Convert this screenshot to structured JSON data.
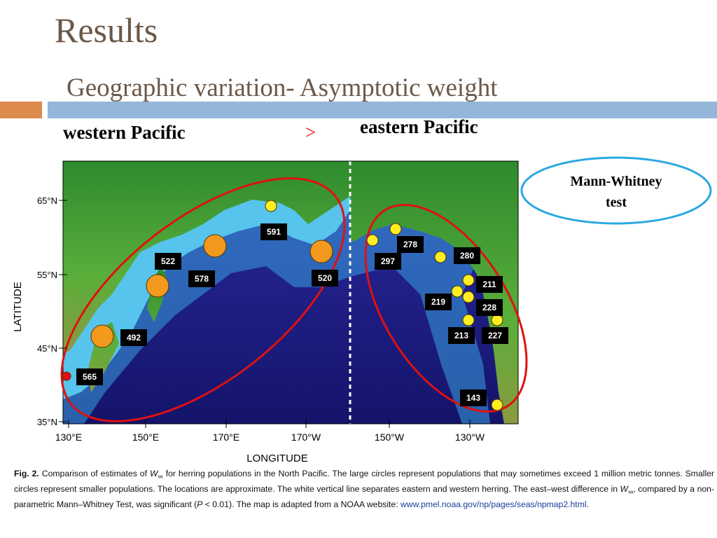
{
  "header": {
    "title": "Results",
    "subtitle": "Geographic variation- Asymptotic weight"
  },
  "comparison": {
    "left": "western Pacific",
    "operator": ">",
    "right": "eastern Pacific"
  },
  "callout": {
    "line1": "Mann-Whitney",
    "line2": "test"
  },
  "figure": {
    "y_axis_label": "LATITUDE",
    "x_axis_label": "LONGITUDE",
    "y_ticks": [
      "65°N",
      "55°N",
      "45°N",
      "35°N"
    ],
    "x_ticks": [
      "130°E",
      "150°E",
      "170°E",
      "170°W",
      "150°W",
      "130°W"
    ],
    "markers": [
      "591",
      "522",
      "578",
      "520",
      "492",
      "565",
      "278",
      "297",
      "280",
      "211",
      "219",
      "228",
      "213",
      "227",
      "143"
    ]
  },
  "caption": {
    "label": "Fig. 2.",
    "parts": [
      "Comparison of estimates of ",
      "W",
      "∞",
      " for herring populations in the North Pacific. The large circles represent populations that may sometimes exceed 1 million metric tonnes. Smaller circles represent smaller populations. The locations are approximate. The white vertical line separates eastern and western herring. The east–west difference in ",
      "W",
      "∞",
      ", compared by a non-parametric Mann–Whitney Test, was significant (",
      "P",
      " < 0.01). The map is adapted from a NOAA website: ",
      "www.pmel.noaa.gov/np/pages/seas/npmap2.html",
      "."
    ]
  }
}
